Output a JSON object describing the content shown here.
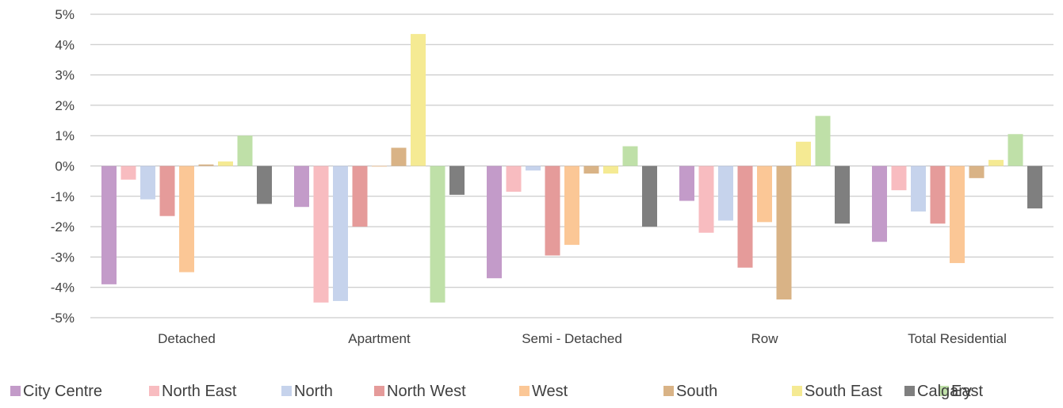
{
  "chart_data": {
    "type": "bar",
    "title": "",
    "xlabel": "",
    "ylabel": "",
    "categories": [
      "Detached",
      "Apartment",
      "Semi - Detached",
      "Row",
      "Total Residential"
    ],
    "ylim": [
      -5,
      5
    ],
    "yticks": [
      {
        "value": 5,
        "label": "5%"
      },
      {
        "value": 4,
        "label": "4%"
      },
      {
        "value": 3,
        "label": "3%"
      },
      {
        "value": 2,
        "label": "2%"
      },
      {
        "value": 1,
        "label": "1%"
      },
      {
        "value": 0,
        "label": "0%"
      },
      {
        "value": -1,
        "label": "-1%"
      },
      {
        "value": -2,
        "label": "-2%"
      },
      {
        "value": -3,
        "label": "-3%"
      },
      {
        "value": -4,
        "label": "-4%"
      },
      {
        "value": -5,
        "label": "-5%"
      }
    ],
    "grid": true,
    "legend_position": "bottom",
    "series": [
      {
        "name": "City Centre",
        "color": "#c39bc9",
        "values": [
          -3.9,
          -1.35,
          -3.7,
          -1.15,
          -2.5
        ]
      },
      {
        "name": "North East",
        "color": "#f8bcc0",
        "values": [
          -0.45,
          -4.5,
          -0.85,
          -2.2,
          -0.8
        ]
      },
      {
        "name": "North",
        "color": "#c6d3ec",
        "values": [
          -1.1,
          -4.45,
          -0.15,
          -1.8,
          -1.5
        ]
      },
      {
        "name": "North West",
        "color": "#e59b9a",
        "values": [
          -1.65,
          -2.0,
          -2.95,
          -3.35,
          -1.9
        ]
      },
      {
        "name": "West",
        "color": "#fbc796",
        "values": [
          -3.5,
          -0.02,
          -2.6,
          -1.85,
          -3.2
        ]
      },
      {
        "name": "South",
        "color": "#d9b386",
        "values": [
          0.05,
          0.6,
          -0.25,
          -4.4,
          -0.4
        ]
      },
      {
        "name": "South East",
        "color": "#f5ea93",
        "values": [
          0.15,
          4.35,
          -0.25,
          0.8,
          0.2
        ]
      },
      {
        "name": "East",
        "color": "#bfe0a8",
        "values": [
          1.0,
          -4.5,
          0.65,
          1.65,
          1.05
        ]
      },
      {
        "name": "Calgary",
        "color": "#7f7f7f",
        "values": [
          -1.25,
          -0.95,
          -2.0,
          -1.9,
          -1.4
        ]
      }
    ]
  }
}
